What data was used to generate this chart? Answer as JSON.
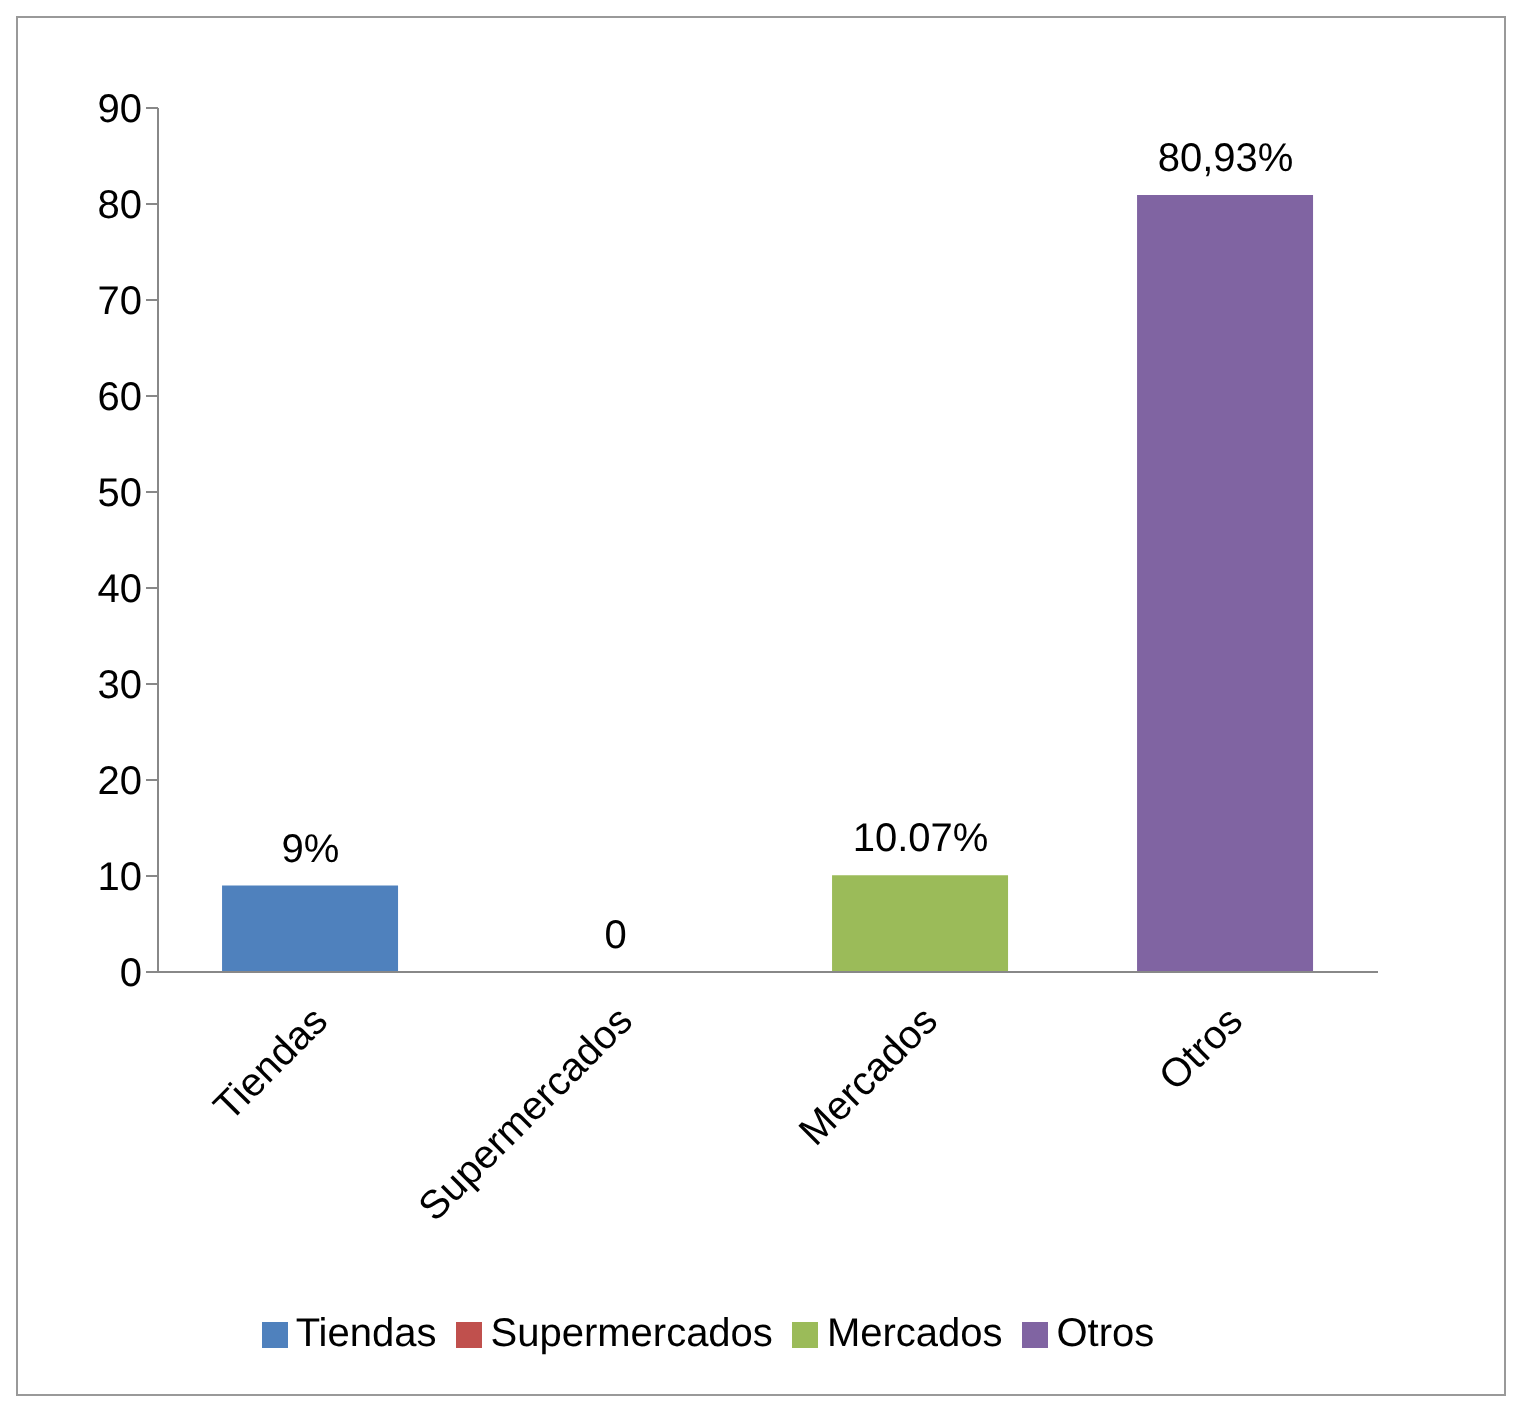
{
  "chart_data": {
    "type": "bar",
    "categories": [
      "Tiendas",
      "Supermercados",
      "Mercados",
      "Otros"
    ],
    "series": [
      {
        "name": "Tiendas",
        "color": "#4f81bd",
        "values": [
          9,
          null,
          null,
          null
        ],
        "value_labels": [
          "9%",
          null,
          null,
          null
        ]
      },
      {
        "name": "Supermercados",
        "color": "#c0504d",
        "values": [
          null,
          0,
          null,
          null
        ],
        "value_labels": [
          null,
          "0",
          null,
          null
        ]
      },
      {
        "name": "Mercados",
        "color": "#9bbb59",
        "values": [
          null,
          null,
          10.07,
          null
        ],
        "value_labels": [
          null,
          null,
          "10.07%",
          null
        ]
      },
      {
        "name": "Otros",
        "color": "#8064a2",
        "values": [
          null,
          null,
          null,
          80.93
        ],
        "value_labels": [
          null,
          null,
          null,
          "80,93%"
        ]
      }
    ],
    "stacked": true,
    "ylim": [
      0,
      90
    ],
    "yticks": [
      0,
      10,
      20,
      30,
      40,
      50,
      60,
      70,
      80,
      90
    ],
    "grid": false,
    "legend": "bottom"
  }
}
